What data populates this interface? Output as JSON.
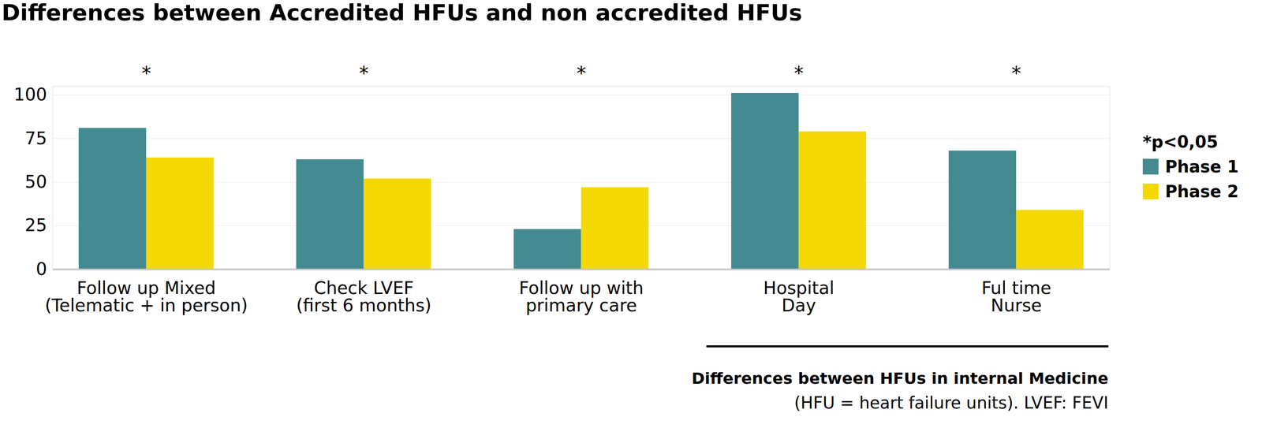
{
  "chart_data": {
    "type": "bar",
    "title": "Differences between Accredited HFUs and non accredited HFUs",
    "categories": [
      "Follow up Mixed\n(Telematic + in person)",
      "Check LVEF\n(first 6 months)",
      "Follow up with\nprimary care",
      "Hospital\nDay",
      "Ful time\nNurse"
    ],
    "series": [
      {
        "name": "Phase 1",
        "color": "#438b91",
        "values": [
          81,
          63,
          23,
          101,
          68
        ]
      },
      {
        "name": "Phase 2",
        "color": "#f4d803",
        "values": [
          64,
          52,
          47,
          79,
          34
        ]
      }
    ],
    "ylim": [
      0,
      105
    ],
    "yticks": [
      0,
      25,
      50,
      75,
      100
    ],
    "grid": true,
    "legend": "right",
    "legend_title": "*p<0,05",
    "annotations": [
      "*",
      "*",
      "*",
      "*",
      "*"
    ],
    "group_note": {
      "label": "Differences between HFUs in internal Medicine",
      "categories": [
        "Hospital\nDay",
        "Ful time\nNurse"
      ]
    },
    "caption": "(HFU = heart failure units). LVEF: FEVI"
  }
}
